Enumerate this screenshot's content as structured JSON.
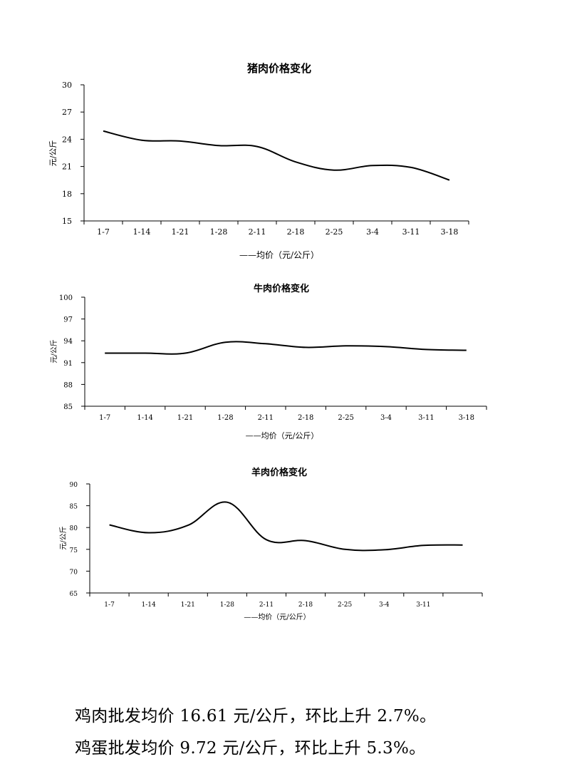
{
  "chart_data": [
    {
      "type": "line",
      "title": "猪肉价格变化",
      "ylabel": "元/公斤",
      "xlabel": "",
      "categories": [
        "1-7",
        "1-14",
        "1-21",
        "1-28",
        "2-11",
        "2-18",
        "2-25",
        "3-4",
        "3-11",
        "3-18"
      ],
      "ylim": [
        15,
        30
      ],
      "yticks": [
        15,
        18,
        21,
        24,
        27,
        30
      ],
      "series": [
        {
          "name": "均价（元/公斤）",
          "values": [
            24.9,
            23.9,
            23.8,
            23.3,
            23.2,
            21.5,
            20.6,
            21.1,
            20.9,
            19.5
          ]
        }
      ],
      "legend_text": "——均价（元/公斤）",
      "legend": "bottom",
      "grid": false
    },
    {
      "type": "line",
      "title": "牛肉价格变化",
      "ylabel": "元/公斤",
      "xlabel": "",
      "categories": [
        "1-7",
        "1-14",
        "1-21",
        "1-28",
        "2-11",
        "2-18",
        "2-25",
        "3-4",
        "3-11",
        "3-18"
      ],
      "ylim": [
        85,
        100
      ],
      "yticks": [
        85,
        88,
        91,
        94,
        97,
        100
      ],
      "series": [
        {
          "name": "均价（元/公斤）",
          "values": [
            92.3,
            92.3,
            92.3,
            93.8,
            93.6,
            93.1,
            93.3,
            93.2,
            92.8,
            92.7
          ]
        }
      ],
      "legend_text": "——均价（元/公斤）",
      "legend": "bottom",
      "grid": false
    },
    {
      "type": "line",
      "title": "羊肉价格变化",
      "ylabel": "元/公斤",
      "xlabel": "",
      "categories": [
        "1-7",
        "1-14",
        "1-21",
        "1-28",
        "2-11",
        "2-18",
        "2-25",
        "3-4",
        "3-11",
        ""
      ],
      "ylim": [
        65,
        90
      ],
      "yticks": [
        65,
        70,
        75,
        80,
        85,
        90
      ],
      "series": [
        {
          "name": "均价（元/公斤）",
          "values": [
            80.6,
            78.8,
            80.5,
            85.8,
            77.2,
            77.0,
            75.0,
            74.9,
            75.9,
            76.0
          ]
        }
      ],
      "legend_text": "——均价（元/公斤）",
      "legend": "bottom",
      "grid": false
    }
  ],
  "summary": {
    "line1": "鸡肉批发均价 16.61 元/公斤，环比上升 2.7%。",
    "line2": "鸡蛋批发均价 9.72 元/公斤，环比上升 5.3%。"
  }
}
